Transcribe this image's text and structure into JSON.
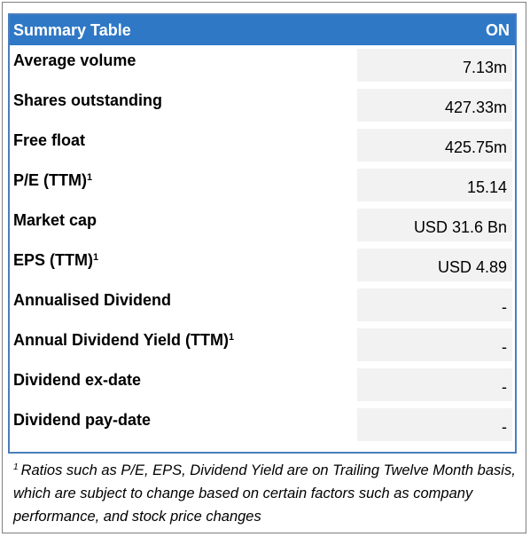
{
  "header": {
    "title": "Summary Table",
    "ticker": "ON"
  },
  "rows": [
    {
      "label": "Average volume",
      "sup": "",
      "value": "7.13m"
    },
    {
      "label": "Shares outstanding",
      "sup": "",
      "value": "427.33m"
    },
    {
      "label": "Free float",
      "sup": "",
      "value": "425.75m"
    },
    {
      "label": "P/E (TTM)",
      "sup": "1",
      "value": "15.14"
    },
    {
      "label": "Market cap",
      "sup": "",
      "value": "USD 31.6 Bn"
    },
    {
      "label": "EPS (TTM)",
      "sup": "1",
      "value": "USD 4.89"
    },
    {
      "label": "Annualised Dividend",
      "sup": "",
      "value": "-"
    },
    {
      "label": "Annual Dividend Yield (TTM)",
      "sup": "1",
      "value": "-"
    },
    {
      "label": "Dividend ex-date",
      "sup": "",
      "value": "-"
    },
    {
      "label": "Dividend pay-date",
      "sup": "",
      "value": "-"
    }
  ],
  "footnote": {
    "marker": "1",
    "text": "Ratios such as P/E, EPS, Dividend Yield are on Trailing Twelve Month basis, which are subject to change based on certain factors such as company performance, and stock price changes"
  }
}
